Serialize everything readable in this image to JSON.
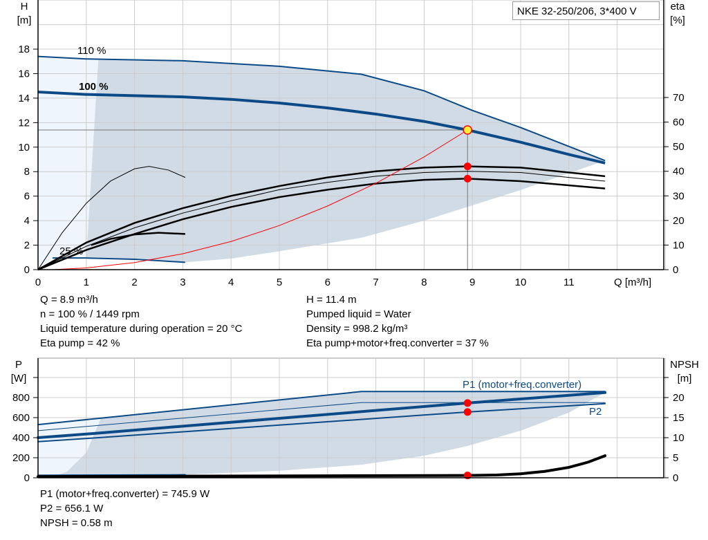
{
  "title": "NKE 32-250/206, 3*400 V",
  "colors": {
    "curve": "#0b4a86",
    "shade": "#d0dbe6",
    "shade_light": "#eef5fc",
    "eta": "#000000",
    "system": "#ff0000",
    "point": "#ff0000"
  },
  "info_left": [
    "Q = 8.9 m³/h",
    "n = 100 % / 1449 rpm",
    "Liquid temperature during operation = 20 °C",
    "Eta pump = 42 %"
  ],
  "info_right": [
    "H = 11.4 m",
    "Pumped liquid = Water",
    "Density = 998.2 kg/m³",
    "Eta pump+motor+freq.converter = 37 %"
  ],
  "info_bottom": [
    "P1 (motor+freq.converter) = 745.9 W",
    "P2 = 656.1 W",
    "NPSH = 0.58 m"
  ],
  "chart_data": [
    {
      "type": "line",
      "xlabel": "Q [m³/h]",
      "ylabel": "H [m]",
      "ylabel_right": "eta [%]",
      "xlim": [
        0,
        13
      ],
      "ylim": [
        0,
        22
      ],
      "ylim_right": [
        0,
        80
      ],
      "xticks": [
        0,
        1,
        2,
        3,
        4,
        5,
        6,
        7,
        8,
        9,
        10,
        11
      ],
      "yticks": [
        0,
        2,
        4,
        6,
        8,
        10,
        12,
        14,
        16,
        18
      ],
      "yticks_right": [
        0,
        10,
        20,
        30,
        40,
        50,
        60,
        70
      ],
      "grid": true,
      "curve_labels": [
        "110 %",
        "100 %",
        "25 %"
      ],
      "series": [
        {
          "name": "110 %",
          "axis": "left",
          "style": "head",
          "x": [
            0,
            1,
            3,
            5,
            6.7,
            8,
            9,
            10,
            11.75
          ],
          "y": [
            17.4,
            17.2,
            17.05,
            16.6,
            15.95,
            14.6,
            13.0,
            11.6,
            8.9
          ]
        },
        {
          "name": "100 %",
          "axis": "left",
          "style": "head-bold",
          "x": [
            0,
            1,
            2,
            3,
            4,
            5,
            6,
            7,
            8,
            8.9,
            10,
            11,
            11.75
          ],
          "y": [
            14.5,
            14.3,
            14.2,
            14.1,
            13.9,
            13.6,
            13.2,
            12.7,
            12.1,
            11.4,
            10.4,
            9.4,
            8.7
          ]
        },
        {
          "name": "25 %",
          "axis": "left",
          "style": "head",
          "x": [
            0.3,
            1,
            2,
            3.05
          ],
          "y": [
            0.95,
            0.95,
            0.85,
            0.6
          ]
        },
        {
          "axis": "right",
          "style": "eta",
          "x": [
            0,
            1,
            2,
            3,
            4,
            5,
            6,
            7,
            8,
            8.9,
            10,
            11.75
          ],
          "y": [
            0,
            11,
            19,
            25,
            30,
            34,
            37.5,
            40,
            41.5,
            42,
            41.5,
            38
          ]
        },
        {
          "axis": "right",
          "style": "eta-thin",
          "x": [
            0,
            1,
            2,
            3,
            4,
            5,
            6,
            7,
            8,
            8.9,
            10,
            11.75
          ],
          "y": [
            0,
            9.5,
            17,
            23,
            28,
            32.5,
            35.5,
            38,
            39.5,
            40,
            39.5,
            36
          ]
        },
        {
          "axis": "right",
          "style": "eta",
          "x": [
            0,
            1,
            2,
            3,
            4,
            5,
            6,
            7,
            8,
            8.9,
            10,
            11.75
          ],
          "y": [
            0,
            8,
            14.5,
            20.5,
            25.5,
            29.5,
            32.5,
            35,
            36.5,
            37,
            36,
            33
          ]
        },
        {
          "axis": "right",
          "style": "eta-thin",
          "x": [
            0,
            0.5,
            1,
            1.5,
            2,
            2.3,
            2.7,
            3.05
          ],
          "y": [
            0,
            15,
            27,
            36,
            41,
            42,
            40.5,
            37.5
          ]
        },
        {
          "axis": "right",
          "style": "eta",
          "x": [
            1.1,
            1.5,
            2,
            2.5,
            3.05
          ],
          "y": [
            10,
            12.5,
            14.3,
            15,
            14.5
          ]
        },
        {
          "axis": "left",
          "style": "system",
          "x": [
            0.3,
            1,
            2,
            3,
            4,
            5,
            6,
            7,
            8,
            8.9
          ],
          "y": [
            0,
            0.14,
            0.58,
            1.3,
            2.3,
            3.6,
            5.2,
            7.05,
            9.2,
            11.4
          ]
        }
      ],
      "duty_point": {
        "q": 8.9,
        "h": 11.4,
        "eta_pump": 42,
        "eta_total": 37
      }
    },
    {
      "type": "line",
      "ylabel": "P [W]",
      "ylabel_right": "NPSH [m]",
      "xlim": [
        0,
        13
      ],
      "ylim": [
        0,
        1200
      ],
      "ylim_right": [
        0,
        30
      ],
      "yticks": [
        0,
        200,
        400,
        600,
        800
      ],
      "yticks_right": [
        0,
        5,
        10,
        15,
        20
      ],
      "grid": true,
      "series_labels": [
        "P1 (motor+freq.converter)",
        "P2"
      ],
      "series": [
        {
          "axis": "left",
          "style": "power",
          "x": [
            0,
            1.2,
            6.7,
            11.75
          ],
          "y": [
            530,
            590,
            860,
            860
          ]
        },
        {
          "axis": "left",
          "style": "power-thin",
          "x": [
            0,
            6.7,
            11.75
          ],
          "y": [
            470,
            750,
            750
          ]
        },
        {
          "name": "P1 (motor+freq.converter)",
          "axis": "left",
          "style": "power-bold",
          "x": [
            0,
            1.1,
            8.9,
            11.75
          ],
          "y": [
            400,
            440,
            746,
            850
          ]
        },
        {
          "name": "P2",
          "axis": "left",
          "style": "power",
          "x": [
            0,
            1.1,
            8.9,
            11.75
          ],
          "y": [
            360,
            395,
            656,
            740
          ]
        },
        {
          "axis": "left",
          "style": "power",
          "x": [
            0,
            3.05
          ],
          "y": [
            25,
            30
          ]
        },
        {
          "axis": "right",
          "style": "npsh",
          "x": [
            0,
            3,
            6,
            8.9,
            9.5,
            10,
            10.5,
            11,
            11.4,
            11.75
          ],
          "y": [
            0.3,
            0.4,
            0.5,
            0.58,
            0.7,
            1.0,
            1.6,
            2.6,
            3.9,
            5.5
          ]
        }
      ],
      "duty_point": {
        "q": 8.9,
        "p1": 745.9,
        "p2": 656.1,
        "npsh": 0.58
      }
    }
  ]
}
